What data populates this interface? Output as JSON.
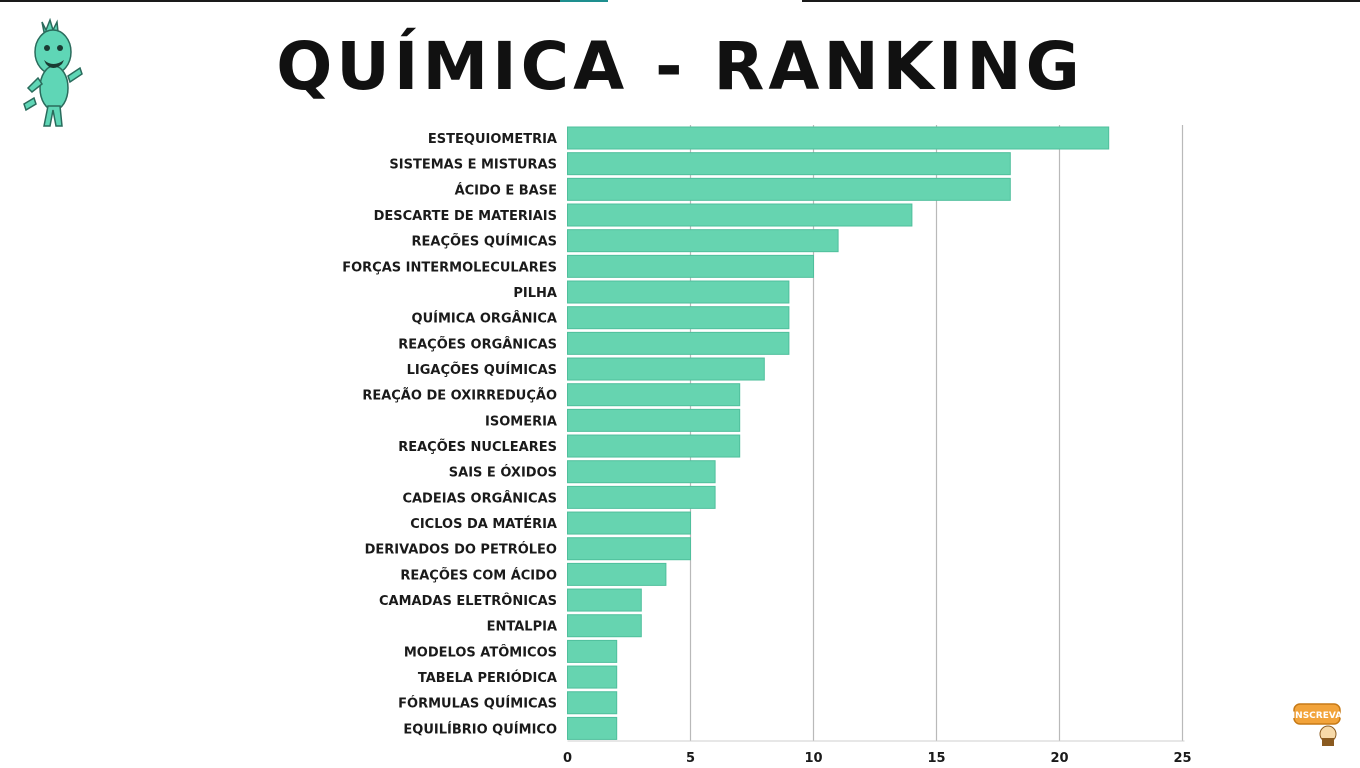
{
  "header": {
    "title": "QUÍMICA - RANKING"
  },
  "badge": {
    "label": "INSCREVA"
  },
  "colors": {
    "bar": "#66d4b0",
    "bar_stroke": "#4fbf9c",
    "grid": "#b9b9b9",
    "mascot": "#5fd6b6"
  },
  "chart_data": {
    "type": "bar",
    "orientation": "horizontal",
    "title": "QUÍMICA - RANKING",
    "xlabel": "",
    "ylabel": "",
    "xlim": [
      0,
      25
    ],
    "xticks": [
      0,
      5,
      10,
      15,
      20,
      25
    ],
    "grid": true,
    "categories": [
      "ESTEQUIOMETRIA",
      "SISTEMAS E MISTURAS",
      "ÁCIDO E BASE",
      "DESCARTE DE MATERIAIS",
      "REAÇÕES QUÍMICAS",
      "FORÇAS INTERMOLECULARES",
      "PILHA",
      "QUÍMICA ORGÂNICA",
      "REAÇÕES ORGÂNICAS",
      "LIGAÇÕES QUÍMICAS",
      "REAÇÃO DE OXIRREDUÇÃO",
      "ISOMERIA",
      "REAÇÕES NUCLEARES",
      "SAIS E ÓXIDOS",
      "CADEIAS ORGÂNICAS",
      "CICLOS DA MATÉRIA",
      "DERIVADOS DO PETRÓLEO",
      "REAÇÕES COM ÁCIDO",
      "CAMADAS ELETRÔNICAS",
      "ENTALPIA",
      "MODELOS ATÔMICOS",
      "TABELA PERIÓDICA",
      "FÓRMULAS QUÍMICAS",
      "EQUILÍBRIO QUÍMICO"
    ],
    "values": [
      22,
      18,
      18,
      14,
      11,
      10,
      9,
      9,
      9,
      8,
      7,
      7,
      7,
      6,
      6,
      5,
      5,
      4,
      3,
      3,
      2,
      2,
      2,
      2
    ]
  }
}
